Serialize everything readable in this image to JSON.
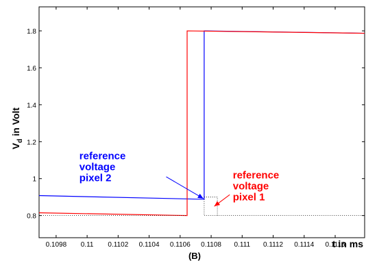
{
  "chart_data": {
    "type": "line",
    "title": "",
    "xlabel": "t in ms",
    "ylabel_main": "V",
    "ylabel_sub": "d",
    "ylabel_rest": " in Volt",
    "panel_label": "(B)",
    "xlim": [
      0.10969,
      0.11179
    ],
    "ylim": [
      0.68,
      1.93
    ],
    "x_ticks": [
      0.1098,
      0.11,
      0.1102,
      0.1104,
      0.1106,
      0.1108,
      0.111,
      0.1112,
      0.1114,
      0.1116
    ],
    "x_tick_labels": [
      "0.1098",
      "0.11",
      "0.1102",
      "0.1104",
      "0.1106",
      "0.1108",
      "0.111",
      "0.1112",
      "0.1114",
      "0.1116"
    ],
    "y_ticks": [
      0.8,
      1.0,
      1.2,
      1.4,
      1.6,
      1.8
    ],
    "y_tick_labels": [
      "0.8",
      "1",
      "1.2",
      "1.4",
      "1.6",
      "1.8"
    ],
    "grid": false,
    "series": [
      {
        "color": "#0000ff",
        "x": [
          0.10969,
          0.110755,
          0.110755,
          0.11179
        ],
        "y": [
          0.908,
          0.888,
          1.8,
          1.787
        ]
      },
      {
        "color": "#ff0000",
        "x": [
          0.10969,
          0.110645,
          0.110645,
          0.11179
        ],
        "y": [
          0.815,
          0.8,
          1.8,
          1.787
        ]
      }
    ],
    "reference_lines": [
      {
        "style": "dotted",
        "x": [
          0.110755,
          0.110755,
          0.11179
        ],
        "y": [
          0.888,
          0.8,
          0.8
        ]
      },
      {
        "style": "dotted",
        "x": [
          0.10969,
          0.110645
        ],
        "y": [
          0.8,
          0.8
        ]
      },
      {
        "style": "dotted",
        "x": [
          0.110755,
          0.11084,
          0.11084
        ],
        "y": [
          0.9,
          0.9,
          0.8
        ]
      }
    ],
    "annotations": [
      {
        "lines": [
          "reference",
          "voltage",
          "pixel 2"
        ],
        "color": "#0000ff",
        "text_x": 0.10995,
        "text_y": 1.105,
        "arrow_from": [
          0.11051,
          1.01
        ],
        "arrow_to": [
          0.11075,
          0.892
        ]
      },
      {
        "lines": [
          "reference",
          "voltage",
          "pixel 1"
        ],
        "color": "#ff0000",
        "text_x": 0.11094,
        "text_y": 1.0,
        "arrow_from": [
          0.11092,
          0.913
        ],
        "arrow_to": [
          0.11082,
          0.85
        ]
      }
    ]
  }
}
